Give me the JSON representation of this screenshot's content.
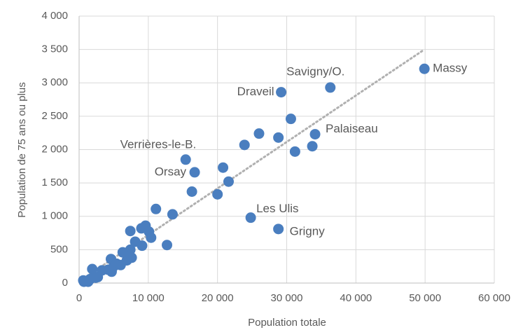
{
  "chart_data": {
    "type": "scatter",
    "x_label": "Population totale",
    "y_label": "Population de 75 ans ou plus",
    "color": "#4a7ebf",
    "grid": true,
    "xlim": [
      0,
      60000
    ],
    "ylim": [
      0,
      4000
    ],
    "xticks": [
      0,
      {
        "value": 10000,
        "label": "10 000"
      },
      {
        "value": 20000,
        "label": "20 000"
      },
      {
        "value": 30000,
        "label": "30 000"
      },
      {
        "value": 40000,
        "label": "40 000"
      },
      {
        "value": 50000,
        "label": "50 000"
      },
      {
        "value": 60000,
        "label": "60 000"
      }
    ],
    "yticks": [
      0,
      500,
      {
        "value": 1000,
        "label": "1 000"
      },
      {
        "value": 1500,
        "label": "1 500"
      },
      {
        "value": 2000,
        "label": "2 000"
      },
      {
        "value": 2500,
        "label": "2 500"
      },
      {
        "value": 3000,
        "label": "3 000"
      },
      {
        "value": 3500,
        "label": "3 500"
      },
      {
        "value": 4000,
        "label": "4 000"
      }
    ],
    "x": [
      49900,
      36300,
      29200,
      34100,
      15400,
      16700,
      24800,
      28800,
      30600,
      28800,
      26000,
      23900,
      31200,
      33700,
      20800,
      21600,
      20000,
      16300,
      13500,
      11100,
      12700,
      10400,
      9600,
      9000,
      10100,
      7400,
      9100,
      8100,
      7400,
      7200,
      7600,
      6900,
      6300,
      4600,
      4700,
      5000,
      4200,
      3300,
      2700,
      1900,
      2400,
      700,
      1300,
      1600,
      600,
      5400,
      6000
    ],
    "y": [
      3210,
      2930,
      2860,
      2230,
      1850,
      1660,
      980,
      810,
      2460,
      2180,
      2240,
      2070,
      1970,
      2050,
      1730,
      1520,
      1330,
      1370,
      1030,
      1110,
      570,
      680,
      860,
      820,
      770,
      780,
      560,
      620,
      500,
      440,
      380,
      340,
      460,
      360,
      170,
      250,
      200,
      190,
      90,
      210,
      80,
      20,
      20,
      60,
      40,
      290,
      270
    ],
    "labels": [
      "Massy",
      "Savigny/O.",
      "Draveil",
      "Palaiseau",
      "Verrières-le-B.",
      "Orsay",
      "Les Ulis",
      "Grigny"
    ],
    "trendline": {
      "color": "#b0b0b0",
      "x": [
        500,
        49900
      ],
      "y": [
        60,
        3500
      ]
    }
  }
}
